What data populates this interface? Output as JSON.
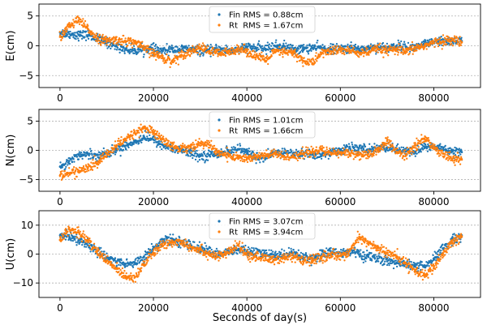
{
  "chart_data": [
    {
      "type": "scatter",
      "ylabel": "E(cm)",
      "xlabel": "",
      "xlim": [
        -4500,
        90000
      ],
      "ylim": [
        -7,
        7
      ],
      "yticks": [
        "5",
        "0",
        "−5"
      ],
      "ytick_values": [
        5,
        0,
        -5
      ],
      "xticks": [
        "0",
        "20000",
        "40000",
        "60000",
        "80000"
      ],
      "xtick_values": [
        0,
        20000,
        40000,
        60000,
        80000
      ],
      "series": [
        {
          "name": "Fin RMS = 0.88cm",
          "color": "#1f77b4",
          "x": [
            0,
            2000,
            4000,
            6000,
            8000,
            10000,
            12000,
            14000,
            16000,
            18000,
            20000,
            22000,
            24000,
            26000,
            28000,
            30000,
            32000,
            34000,
            36000,
            38000,
            40000,
            42000,
            44000,
            46000,
            48000,
            50000,
            52000,
            54000,
            56000,
            58000,
            60000,
            62000,
            64000,
            66000,
            68000,
            70000,
            72000,
            74000,
            76000,
            78000,
            80000,
            82000,
            84000,
            86000
          ],
          "y": [
            2.2,
            2.0,
            1.8,
            1.8,
            1.2,
            0.5,
            0.0,
            -0.6,
            -0.8,
            -0.5,
            -0.6,
            -0.9,
            -0.6,
            -0.6,
            -0.6,
            -0.8,
            -0.8,
            -0.6,
            -0.7,
            -0.8,
            -0.2,
            -0.4,
            -0.5,
            0.0,
            -0.1,
            -0.6,
            -0.5,
            -0.3,
            -0.4,
            -0.6,
            -0.5,
            -0.4,
            -0.5,
            -0.4,
            -0.2,
            -0.3,
            0.0,
            -0.2,
            -0.3,
            0.3,
            0.5,
            0.7,
            0.8,
            0.8
          ]
        },
        {
          "name": "Rt  RMS = 1.67cm",
          "color": "#ff7f0e",
          "x": [
            0,
            2000,
            4000,
            6000,
            8000,
            10000,
            12000,
            14000,
            16000,
            18000,
            20000,
            22000,
            24000,
            26000,
            28000,
            30000,
            32000,
            34000,
            36000,
            38000,
            40000,
            42000,
            44000,
            46000,
            48000,
            50000,
            52000,
            54000,
            56000,
            58000,
            60000,
            62000,
            64000,
            66000,
            68000,
            70000,
            72000,
            74000,
            76000,
            78000,
            80000,
            82000,
            84000,
            86000
          ],
          "y": [
            1.5,
            3.3,
            4.3,
            2.8,
            1.3,
            0.8,
            1.0,
            0.8,
            0.6,
            -0.4,
            -1.3,
            -2.0,
            -2.6,
            -1.5,
            -0.9,
            -0.3,
            -0.9,
            -1.3,
            -1.2,
            -0.4,
            -0.9,
            -1.7,
            -2.5,
            -1.0,
            -1.1,
            -1.2,
            -2.5,
            -2.9,
            -1.2,
            -0.9,
            -0.7,
            -0.8,
            -1.2,
            -1.1,
            -0.5,
            -0.9,
            -0.6,
            -1.1,
            -0.4,
            0.0,
            0.5,
            0.8,
            1.0,
            0.6
          ]
        }
      ]
    },
    {
      "type": "scatter",
      "ylabel": "N(cm)",
      "xlabel": "",
      "xlim": [
        -4500,
        90000
      ],
      "ylim": [
        -7,
        7
      ],
      "yticks": [
        "5",
        "0",
        "−5"
      ],
      "ytick_values": [
        5,
        0,
        -5
      ],
      "xticks": [
        "0",
        "20000",
        "40000",
        "60000",
        "80000"
      ],
      "xtick_values": [
        0,
        20000,
        40000,
        60000,
        80000
      ],
      "series": [
        {
          "name": "Fin RMS = 1.01cm",
          "color": "#1f77b4",
          "x": [
            0,
            2000,
            4000,
            6000,
            8000,
            10000,
            12000,
            14000,
            16000,
            18000,
            20000,
            22000,
            24000,
            26000,
            28000,
            30000,
            32000,
            34000,
            36000,
            38000,
            40000,
            42000,
            44000,
            46000,
            48000,
            50000,
            52000,
            54000,
            56000,
            58000,
            60000,
            62000,
            64000,
            66000,
            68000,
            70000,
            72000,
            74000,
            76000,
            78000,
            80000,
            82000,
            84000,
            86000
          ],
          "y": [
            -2.8,
            -1.8,
            -0.8,
            -0.7,
            -0.8,
            -0.5,
            0.0,
            0.8,
            1.4,
            2.3,
            1.8,
            0.9,
            0.3,
            0.0,
            -0.5,
            -1.0,
            -0.8,
            -0.5,
            -0.2,
            0.2,
            -0.3,
            -1.1,
            -1.4,
            -0.5,
            -0.3,
            -0.6,
            -0.6,
            -0.7,
            -0.9,
            -0.4,
            0.1,
            0.4,
            0.3,
            0.1,
            0.4,
            0.5,
            0.2,
            -0.2,
            -0.3,
            0.6,
            0.6,
            0.3,
            -0.1,
            -0.3
          ]
        },
        {
          "name": "Rt  RMS = 1.66cm",
          "color": "#ff7f0e",
          "x": [
            0,
            2000,
            4000,
            6000,
            8000,
            10000,
            12000,
            14000,
            16000,
            18000,
            20000,
            22000,
            24000,
            26000,
            28000,
            30000,
            32000,
            34000,
            36000,
            38000,
            40000,
            42000,
            44000,
            46000,
            48000,
            50000,
            52000,
            54000,
            56000,
            58000,
            60000,
            62000,
            64000,
            66000,
            68000,
            70000,
            72000,
            74000,
            76000,
            78000,
            80000,
            82000,
            84000,
            86000
          ],
          "y": [
            -4.3,
            -3.9,
            -3.5,
            -3.0,
            -2.2,
            -0.6,
            0.7,
            1.8,
            3.0,
            3.9,
            3.1,
            1.9,
            0.7,
            0.3,
            0.6,
            1.2,
            0.9,
            -0.4,
            -0.9,
            -1.2,
            -1.4,
            -1.1,
            -0.9,
            -0.6,
            -1.1,
            -1.0,
            -0.6,
            -0.2,
            0.0,
            -0.5,
            -0.4,
            -0.5,
            -0.7,
            -1.0,
            0.0,
            1.6,
            -0.3,
            -0.9,
            0.9,
            2.0,
            0.6,
            -0.6,
            -1.4,
            -1.6
          ]
        }
      ]
    },
    {
      "type": "scatter",
      "ylabel": "U(cm)",
      "xlabel": "Seconds of day(s)",
      "xlim": [
        -4500,
        90000
      ],
      "ylim": [
        -15,
        15
      ],
      "yticks": [
        "10",
        "0",
        "−10"
      ],
      "ytick_values": [
        10,
        0,
        -10
      ],
      "xticks": [
        "0",
        "20000",
        "40000",
        "60000",
        "80000"
      ],
      "xtick_values": [
        0,
        20000,
        40000,
        60000,
        80000
      ],
      "series": [
        {
          "name": "Fin RMS = 3.07cm",
          "color": "#1f77b4",
          "x": [
            0,
            2000,
            4000,
            6000,
            8000,
            10000,
            12000,
            14000,
            16000,
            18000,
            20000,
            22000,
            24000,
            26000,
            28000,
            30000,
            32000,
            34000,
            36000,
            38000,
            40000,
            42000,
            44000,
            46000,
            48000,
            50000,
            52000,
            54000,
            56000,
            58000,
            60000,
            62000,
            64000,
            66000,
            68000,
            70000,
            72000,
            74000,
            76000,
            78000,
            80000,
            82000,
            84000,
            86000
          ],
          "y": [
            6.5,
            6.0,
            5.0,
            3.0,
            1.0,
            -1.0,
            -2.5,
            -3.5,
            -3.0,
            -1.0,
            2.0,
            4.5,
            5.0,
            4.0,
            3.0,
            2.0,
            1.0,
            0.0,
            0.5,
            1.5,
            1.0,
            0.5,
            0.0,
            -0.5,
            0.0,
            0.5,
            -1.0,
            -1.5,
            0.0,
            0.5,
            0.5,
            1.0,
            0.0,
            -1.0,
            -1.5,
            -2.5,
            -3.0,
            -3.5,
            -4.0,
            -4.5,
            -2.0,
            2.0,
            5.0,
            6.5
          ]
        },
        {
          "name": "Rt  RMS = 3.94cm",
          "color": "#ff7f0e",
          "x": [
            0,
            2000,
            4000,
            6000,
            8000,
            10000,
            12000,
            14000,
            16000,
            18000,
            20000,
            22000,
            24000,
            26000,
            28000,
            30000,
            32000,
            34000,
            36000,
            38000,
            40000,
            42000,
            44000,
            46000,
            48000,
            50000,
            52000,
            54000,
            56000,
            58000,
            60000,
            62000,
            64000,
            66000,
            68000,
            70000,
            72000,
            74000,
            76000,
            78000,
            80000,
            82000,
            84000,
            86000
          ],
          "y": [
            5.0,
            8.5,
            7.5,
            4.5,
            1.0,
            -2.5,
            -5.0,
            -7.5,
            -8.0,
            -3.5,
            0.5,
            3.0,
            4.0,
            4.5,
            2.5,
            1.5,
            0.0,
            -1.0,
            0.5,
            3.0,
            0.0,
            -1.0,
            -1.5,
            -2.0,
            -1.5,
            -1.0,
            -2.5,
            -2.0,
            -1.0,
            -0.5,
            -0.5,
            1.0,
            5.5,
            4.0,
            2.0,
            0.5,
            -1.0,
            -3.0,
            -5.5,
            -7.5,
            -5.0,
            0.0,
            4.0,
            6.0
          ]
        }
      ]
    }
  ]
}
